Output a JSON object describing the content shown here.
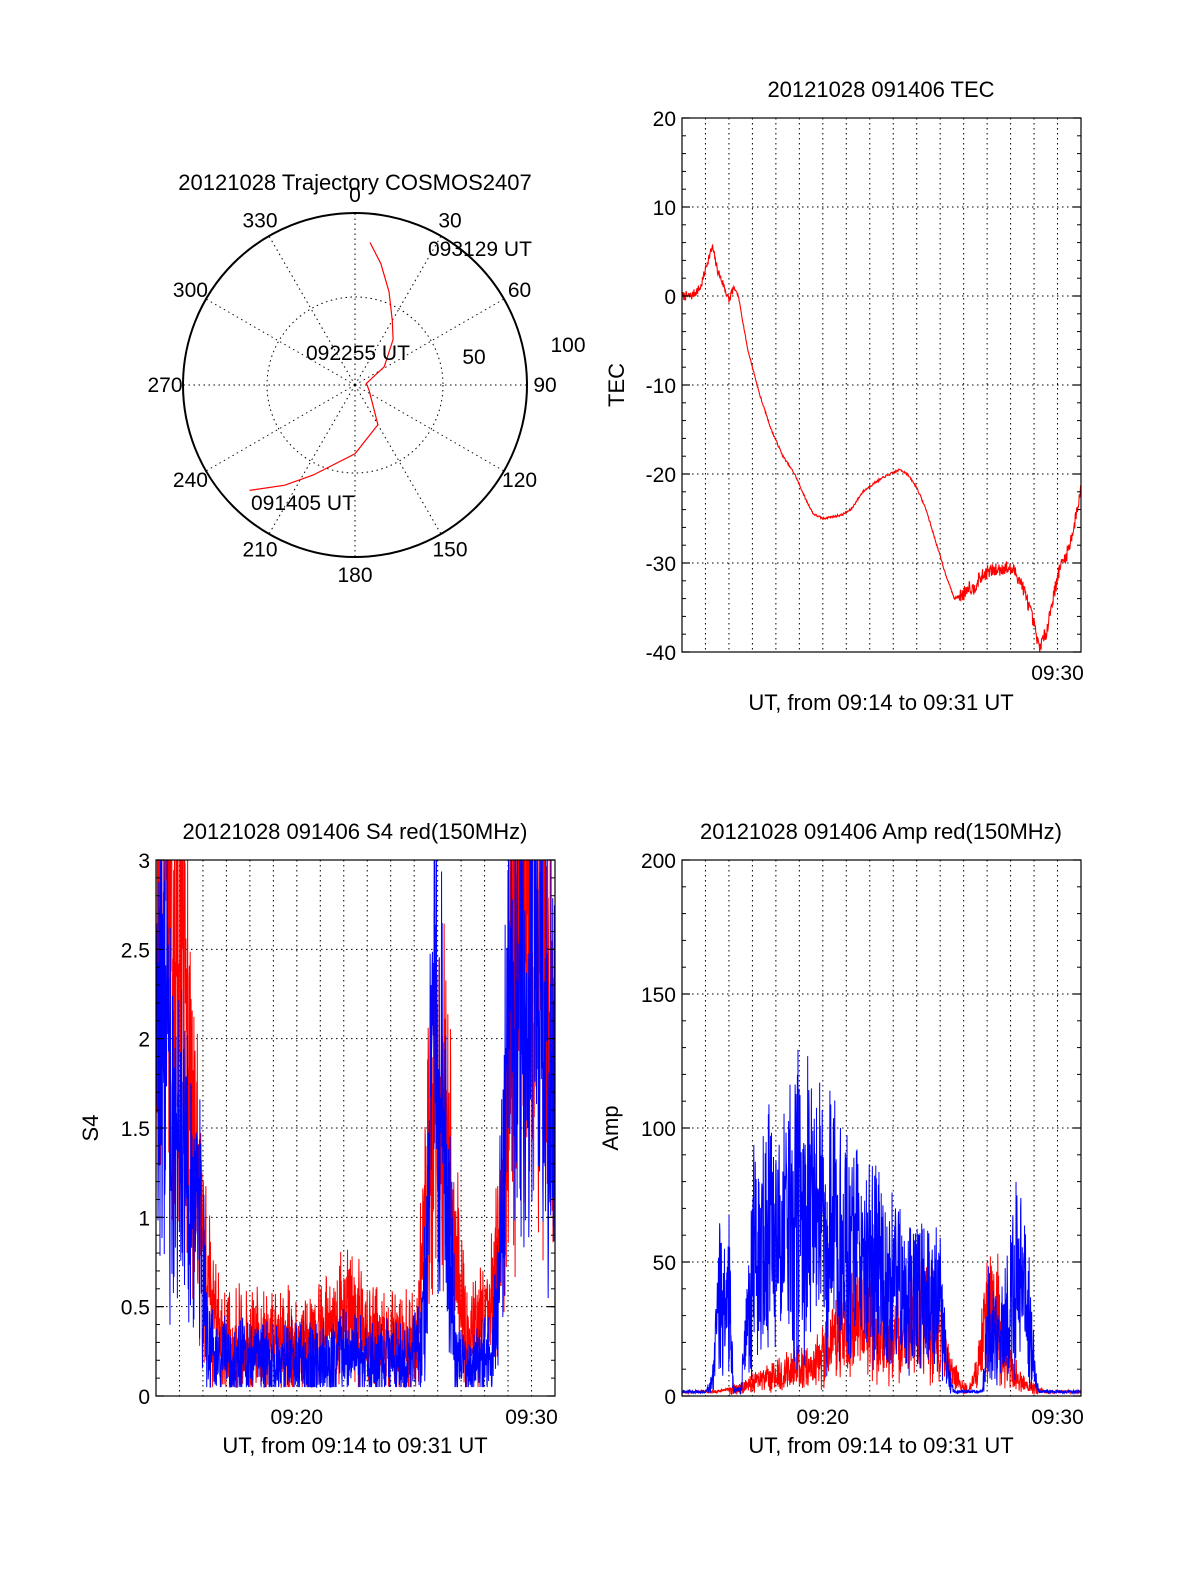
{
  "chart_data": [
    {
      "id": "trajectory",
      "type": "polar",
      "title": "20121028 Trajectory COSMOS2407",
      "azimuth_labels": [
        "0",
        "30",
        "60",
        "90",
        "120",
        "150",
        "180",
        "210",
        "240",
        "270",
        "300",
        "330"
      ],
      "radial_labels": [
        "50",
        "100"
      ],
      "trajectory_color": "#ff0000",
      "trajectory": {
        "azimuth_deg": [
          225,
          215,
          205,
          180,
          150,
          112,
          82,
          58,
          40,
          30,
          20,
          12,
          6
        ],
        "elevation_deg": [
          12,
          26,
          38,
          54,
          66,
          82,
          84,
          72,
          59,
          51,
          38,
          25,
          15
        ]
      },
      "annotations": [
        "093129 UT",
        "092255 UT",
        "091405 UT"
      ]
    },
    {
      "id": "tec",
      "type": "line",
      "title": "20121028 091406 TEC",
      "xlabel": "UT, from 09:14 to 09:31 UT",
      "ylabel": "TEC",
      "xlim": [
        14.0,
        31.0
      ],
      "ylim": [
        -40,
        20
      ],
      "yticks": [
        "-40",
        "-30",
        "-20",
        "-10",
        "0",
        "10",
        "20"
      ],
      "xticks": [
        {
          "at": 30,
          "label": "09:30"
        }
      ],
      "series": [
        {
          "color": "#ff0000",
          "x": [
            14.0,
            14.4,
            14.8,
            15.1,
            15.3,
            15.5,
            15.8,
            16.0,
            16.2,
            16.4,
            16.8,
            17.3,
            17.8,
            18.3,
            18.8,
            19.3,
            19.6,
            20.0,
            20.4,
            20.8,
            21.2,
            21.7,
            22.2,
            22.7,
            23.3,
            23.6,
            24.0,
            24.4,
            24.8,
            25.2,
            25.6,
            26.0,
            26.2,
            26.4,
            26.6,
            27.0,
            27.4,
            27.8,
            28.2,
            28.5,
            28.8,
            29.0,
            29.2,
            29.5,
            29.8,
            30.1,
            30.4,
            30.7,
            31.0
          ],
          "y": [
            0,
            0,
            1,
            4,
            5.5,
            3,
            1,
            -0.5,
            1,
            0,
            -6,
            -11,
            -15,
            -18,
            -20,
            -23,
            -24.5,
            -25,
            -24.8,
            -24.6,
            -24,
            -22,
            -21,
            -20.2,
            -19.5,
            -20,
            -21.5,
            -24,
            -27.5,
            -31,
            -34,
            -33.5,
            -32.5,
            -33,
            -32,
            -31,
            -30.8,
            -30.5,
            -31,
            -32.5,
            -35,
            -37,
            -39.5,
            -38,
            -34,
            -30.5,
            -29,
            -26,
            -21.5
          ]
        }
      ]
    },
    {
      "id": "s4",
      "type": "line",
      "title": "20121028 091406 S4 red(150MHz)",
      "xlabel": "UT, from 09:14 to 09:31 UT",
      "ylabel": "S4",
      "xlim": [
        14.0,
        31.0
      ],
      "ylim": [
        0,
        3
      ],
      "yticks": [
        "0",
        "0.5",
        "1",
        "1.5",
        "2",
        "2.5",
        "3"
      ],
      "xticks": [
        {
          "at": 20,
          "label": "09:20"
        },
        {
          "at": 30,
          "label": "09:30"
        }
      ],
      "series": [
        {
          "color": "#ff0000",
          "x": [
            14.0,
            14.5,
            15.0,
            15.5,
            15.9,
            16.3,
            16.8,
            17.5,
            18.5,
            19.5,
            20.5,
            21.5,
            22.3,
            23.0,
            23.8,
            24.5,
            25.1,
            25.4,
            25.7,
            26.0,
            26.3,
            26.5,
            26.8,
            27.2,
            27.6,
            28.0,
            28.3,
            28.6,
            28.9,
            29.3,
            29.7,
            30.1,
            30.5,
            31.0
          ],
          "y": [
            2.2,
            2.8,
            2.5,
            1.8,
            0.9,
            0.55,
            0.3,
            0.3,
            0.3,
            0.3,
            0.3,
            0.35,
            0.5,
            0.35,
            0.3,
            0.3,
            0.3,
            0.8,
            1.5,
            1.8,
            1.5,
            1.2,
            0.8,
            0.3,
            0.35,
            0.45,
            0.5,
            0.7,
            1.5,
            2.4,
            2.6,
            2.3,
            2.5,
            2.0
          ]
        },
        {
          "color": "#0000ff",
          "x": [
            14.0,
            14.4,
            14.8,
            15.2,
            15.6,
            15.9,
            16.2,
            16.6,
            17.2,
            18.0,
            19.0,
            20.0,
            21.0,
            22.0,
            23.0,
            24.0,
            24.8,
            25.2,
            25.5,
            25.8,
            26.1,
            26.3,
            26.5,
            26.8,
            27.3,
            27.8,
            28.3,
            28.6,
            28.9,
            29.3,
            29.7,
            30.1,
            30.5,
            31.0
          ],
          "y": [
            1.8,
            2.2,
            1.3,
            1.5,
            1.1,
            1.0,
            0.3,
            0.2,
            0.2,
            0.2,
            0.2,
            0.2,
            0.2,
            0.25,
            0.2,
            0.2,
            0.2,
            0.3,
            0.6,
            2.2,
            1.8,
            1.3,
            1.0,
            0.2,
            0.18,
            0.2,
            0.2,
            0.7,
            1.7,
            2.2,
            2.0,
            2.5,
            2.1,
            1.7
          ]
        }
      ]
    },
    {
      "id": "amp",
      "type": "line",
      "title": "20121028 091406 Amp red(150MHz)",
      "xlabel": "UT, from 09:14 to 09:31 UT",
      "ylabel": "Amp",
      "xlim": [
        14.0,
        31.0
      ],
      "ylim": [
        0,
        200
      ],
      "yticks": [
        "0",
        "50",
        "100",
        "150",
        "200"
      ],
      "xticks": [
        {
          "at": 20,
          "label": "09:20"
        },
        {
          "at": 30,
          "label": "09:30"
        }
      ],
      "series": [
        {
          "color": "#ff0000",
          "x": [
            14.0,
            15.5,
            16.5,
            17.0,
            17.5,
            18.0,
            18.5,
            19.0,
            19.5,
            20.0,
            20.5,
            21.0,
            21.5,
            22.0,
            22.5,
            23.0,
            23.5,
            24.0,
            24.5,
            25.0,
            25.4,
            25.8,
            26.2,
            26.6,
            27.0,
            27.3,
            27.6,
            28.0,
            28.5,
            29.0,
            29.5,
            30.0,
            31.0
          ],
          "y": [
            1,
            1,
            3,
            5,
            6,
            8,
            9,
            12,
            10,
            15,
            20,
            25,
            30,
            28,
            22,
            20,
            25,
            30,
            30,
            20,
            10,
            5,
            2,
            10,
            30,
            40,
            20,
            10,
            5,
            3,
            1,
            1,
            1
          ]
        },
        {
          "color": "#0000ff",
          "x": [
            14.0,
            15.0,
            15.3,
            15.6,
            15.8,
            16.0,
            16.2,
            16.5,
            16.8,
            17.0,
            17.3,
            17.6,
            18.0,
            18.5,
            19.0,
            19.5,
            20.0,
            20.5,
            21.0,
            21.5,
            22.0,
            22.5,
            23.0,
            23.5,
            24.0,
            24.5,
            25.0,
            25.3,
            25.6,
            26.0,
            26.4,
            26.8,
            27.1,
            27.4,
            27.7,
            28.0,
            28.3,
            28.6,
            28.9,
            29.2,
            29.6,
            30.0,
            30.5,
            31.0
          ],
          "y": [
            1,
            1,
            5,
            45,
            30,
            40,
            2,
            2,
            30,
            50,
            55,
            60,
            60,
            65,
            70,
            70,
            65,
            60,
            55,
            55,
            50,
            50,
            45,
            40,
            40,
            35,
            35,
            10,
            1,
            1,
            1,
            1,
            30,
            20,
            25,
            35,
            45,
            40,
            20,
            1,
            1,
            1,
            1,
            1
          ]
        }
      ]
    }
  ]
}
